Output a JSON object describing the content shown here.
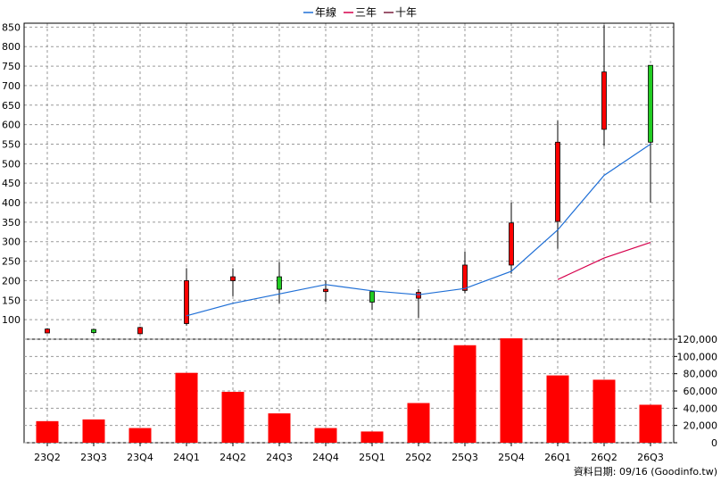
{
  "legend": {
    "items": [
      {
        "label": "年線",
        "color": "#1f6fd6"
      },
      {
        "label": "三年",
        "color": "#d6004c"
      },
      {
        "label": "十年",
        "color": "#7a1f3d"
      }
    ]
  },
  "footer": {
    "text": "資料日期: 09/16  (Goodinfo.tw)"
  },
  "chart_data": [
    {
      "type": "candlestick",
      "title": "",
      "grid": true,
      "ylim": [
        50,
        860
      ],
      "yticks": [
        100,
        150,
        200,
        250,
        300,
        350,
        400,
        450,
        500,
        550,
        600,
        650,
        700,
        750,
        800,
        850
      ],
      "categories": [
        "23Q2",
        "23Q3",
        "23Q4",
        "24Q1",
        "24Q2",
        "24Q3",
        "24Q4",
        "25Q1",
        "25Q2",
        "25Q3",
        "25Q4",
        "26Q1",
        "26Q2",
        "26Q3"
      ],
      "ohlc": [
        {
          "open": 76,
          "high": 78,
          "low": 65,
          "close": 66
        },
        {
          "open": 67,
          "high": 77,
          "low": 64,
          "close": 75
        },
        {
          "open": 80,
          "high": 82,
          "low": 63,
          "close": 64
        },
        {
          "open": 200,
          "high": 232,
          "low": 85,
          "close": 90
        },
        {
          "open": 210,
          "high": 232,
          "low": 160,
          "close": 200
        },
        {
          "open": 178,
          "high": 248,
          "low": 142,
          "close": 210
        },
        {
          "open": 178,
          "high": 200,
          "low": 146,
          "close": 172
        },
        {
          "open": 145,
          "high": 175,
          "low": 125,
          "close": 172
        },
        {
          "open": 170,
          "high": 178,
          "low": 105,
          "close": 155
        },
        {
          "open": 240,
          "high": 275,
          "low": 168,
          "close": 175
        },
        {
          "open": 348,
          "high": 400,
          "low": 218,
          "close": 240
        },
        {
          "open": 555,
          "high": 610,
          "low": 282,
          "close": 352
        },
        {
          "open": 735,
          "high": 855,
          "low": 545,
          "close": 588
        },
        {
          "open": 555,
          "high": 752,
          "low": 400,
          "close": 752
        }
      ],
      "series": [
        {
          "name": "年線",
          "color": "#1f6fd6",
          "values": [
            null,
            null,
            null,
            110,
            142,
            166,
            190,
            174,
            164,
            180,
            224,
            330,
            470,
            550
          ]
        },
        {
          "name": "三年",
          "color": "#d6004c",
          "values": [
            null,
            null,
            null,
            null,
            null,
            null,
            null,
            null,
            null,
            null,
            null,
            203,
            258,
            298
          ]
        }
      ]
    },
    {
      "type": "bar",
      "title": "",
      "grid": true,
      "ylim": [
        0,
        120000
      ],
      "yticks": [
        0,
        20000,
        40000,
        60000,
        80000,
        100000,
        120000
      ],
      "ytick_labels": [
        "0",
        "20,000",
        "40,000",
        "60,000",
        "80,000",
        "100,000",
        "120,000"
      ],
      "categories": [
        "23Q2",
        "23Q3",
        "23Q4",
        "24Q1",
        "24Q2",
        "24Q3",
        "24Q4",
        "25Q1",
        "25Q2",
        "25Q3",
        "25Q4",
        "26Q1",
        "26Q2",
        "26Q3"
      ],
      "values": [
        25000,
        27000,
        17000,
        81000,
        59000,
        34000,
        17000,
        13000,
        46000,
        113000,
        121000,
        78000,
        73000,
        44000
      ],
      "color": "#ff0000"
    }
  ]
}
